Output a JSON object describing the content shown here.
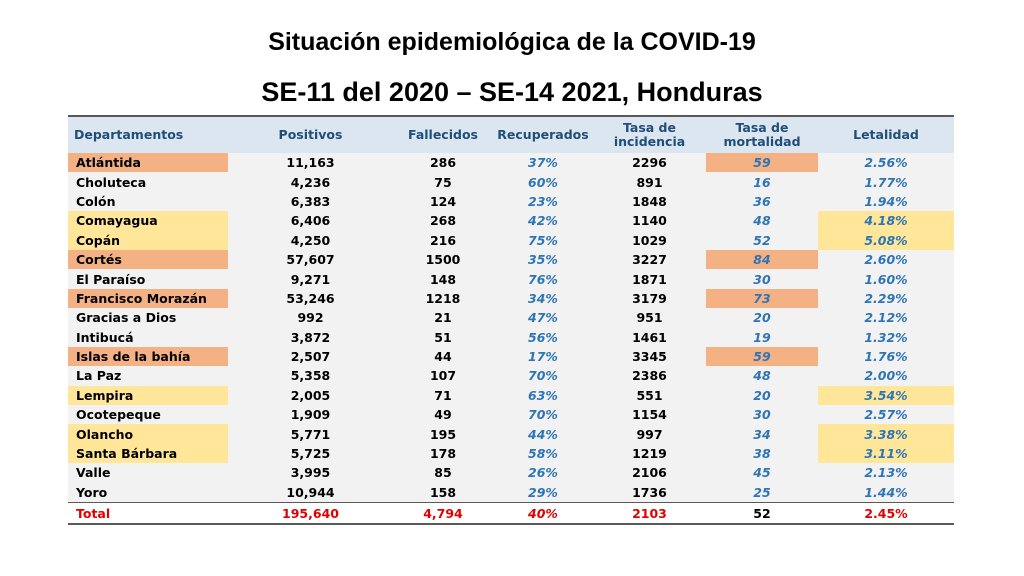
{
  "title_line1": "Situación epidemiológica de la COVID-19",
  "title_line2": "SE-11 del 2020 – SE-14  2021, Honduras",
  "headers": {
    "departamentos": "Departamentos",
    "positivos": "Positivos",
    "fallecidos": "Fallecidos",
    "recuperados": "Recuperados",
    "incidencia_1": "Tasa de",
    "incidencia_2": "incidencia",
    "mortalidad_1": "Tasa de",
    "mortalidad_2": "mortalidad",
    "letalidad": "Letalidad"
  },
  "highlight_colors": {
    "orange": "#f4b183",
    "yellow": "#ffe699",
    "header_bg": "#dce6f1",
    "total_text": "#e00000"
  },
  "rows": [
    {
      "dept": "Atlántida",
      "positivos": "11,163",
      "fallecidos": "286",
      "recuperados": "37%",
      "incidencia": "2296",
      "mortalidad": "59",
      "letalidad": "2.56%"
    },
    {
      "dept": "Choluteca",
      "positivos": "4,236",
      "fallecidos": "75",
      "recuperados": "60%",
      "incidencia": "891",
      "mortalidad": "16",
      "letalidad": "1.77%"
    },
    {
      "dept": "Colón",
      "positivos": "6,383",
      "fallecidos": "124",
      "recuperados": "23%",
      "incidencia": "1848",
      "mortalidad": "36",
      "letalidad": "1.94%"
    },
    {
      "dept": "Comayagua",
      "positivos": "6,406",
      "fallecidos": "268",
      "recuperados": "42%",
      "incidencia": "1140",
      "mortalidad": "48",
      "letalidad": "4.18%"
    },
    {
      "dept": "Copán",
      "positivos": "4,250",
      "fallecidos": "216",
      "recuperados": "75%",
      "incidencia": "1029",
      "mortalidad": "52",
      "letalidad": "5.08%"
    },
    {
      "dept": "Cortés",
      "positivos": "57,607",
      "fallecidos": "1500",
      "recuperados": "35%",
      "incidencia": "3227",
      "mortalidad": "84",
      "letalidad": "2.60%"
    },
    {
      "dept": "El Paraíso",
      "positivos": "9,271",
      "fallecidos": "148",
      "recuperados": "76%",
      "incidencia": "1871",
      "mortalidad": "30",
      "letalidad": "1.60%"
    },
    {
      "dept": "Francisco Morazán",
      "positivos": "53,246",
      "fallecidos": "1218",
      "recuperados": "34%",
      "incidencia": "3179",
      "mortalidad": "73",
      "letalidad": "2.29%"
    },
    {
      "dept": "Gracias a Dios",
      "positivos": "992",
      "fallecidos": "21",
      "recuperados": "47%",
      "incidencia": "951",
      "mortalidad": "20",
      "letalidad": "2.12%"
    },
    {
      "dept": "Intibucá",
      "positivos": "3,872",
      "fallecidos": "51",
      "recuperados": "56%",
      "incidencia": "1461",
      "mortalidad": "19",
      "letalidad": "1.32%"
    },
    {
      "dept": "Islas de la bahía",
      "positivos": "2,507",
      "fallecidos": "44",
      "recuperados": "17%",
      "incidencia": "3345",
      "mortalidad": "59",
      "letalidad": "1.76%"
    },
    {
      "dept": "La Paz",
      "positivos": "5,358",
      "fallecidos": "107",
      "recuperados": "70%",
      "incidencia": "2386",
      "mortalidad": "48",
      "letalidad": "2.00%"
    },
    {
      "dept": "Lempira",
      "positivos": "2,005",
      "fallecidos": "71",
      "recuperados": "63%",
      "incidencia": "551",
      "mortalidad": "20",
      "letalidad": "3.54%"
    },
    {
      "dept": "Ocotepeque",
      "positivos": "1,909",
      "fallecidos": "49",
      "recuperados": "70%",
      "incidencia": "1154",
      "mortalidad": "30",
      "letalidad": "2.57%"
    },
    {
      "dept": "Olancho",
      "positivos": "5,771",
      "fallecidos": "195",
      "recuperados": "44%",
      "incidencia": "997",
      "mortalidad": "34",
      "letalidad": "3.38%"
    },
    {
      "dept": "Santa Bárbara",
      "positivos": "5,725",
      "fallecidos": "178",
      "recuperados": "58%",
      "incidencia": "1219",
      "mortalidad": "38",
      "letalidad": "3.11%"
    },
    {
      "dept": "Valle",
      "positivos": "3,995",
      "fallecidos": "85",
      "recuperados": "26%",
      "incidencia": "2106",
      "mortalidad": "45",
      "letalidad": "2.13%"
    },
    {
      "dept": "Yoro",
      "positivos": "10,944",
      "fallecidos": "158",
      "recuperados": "29%",
      "incidencia": "1736",
      "mortalidad": "25",
      "letalidad": "1.44%"
    }
  ],
  "total": {
    "dept": "Total",
    "positivos": "195,640",
    "fallecidos": "4,794",
    "recuperados": "40%",
    "incidencia": "2103",
    "mortalidad": "52",
    "letalidad": "2.45%"
  }
}
